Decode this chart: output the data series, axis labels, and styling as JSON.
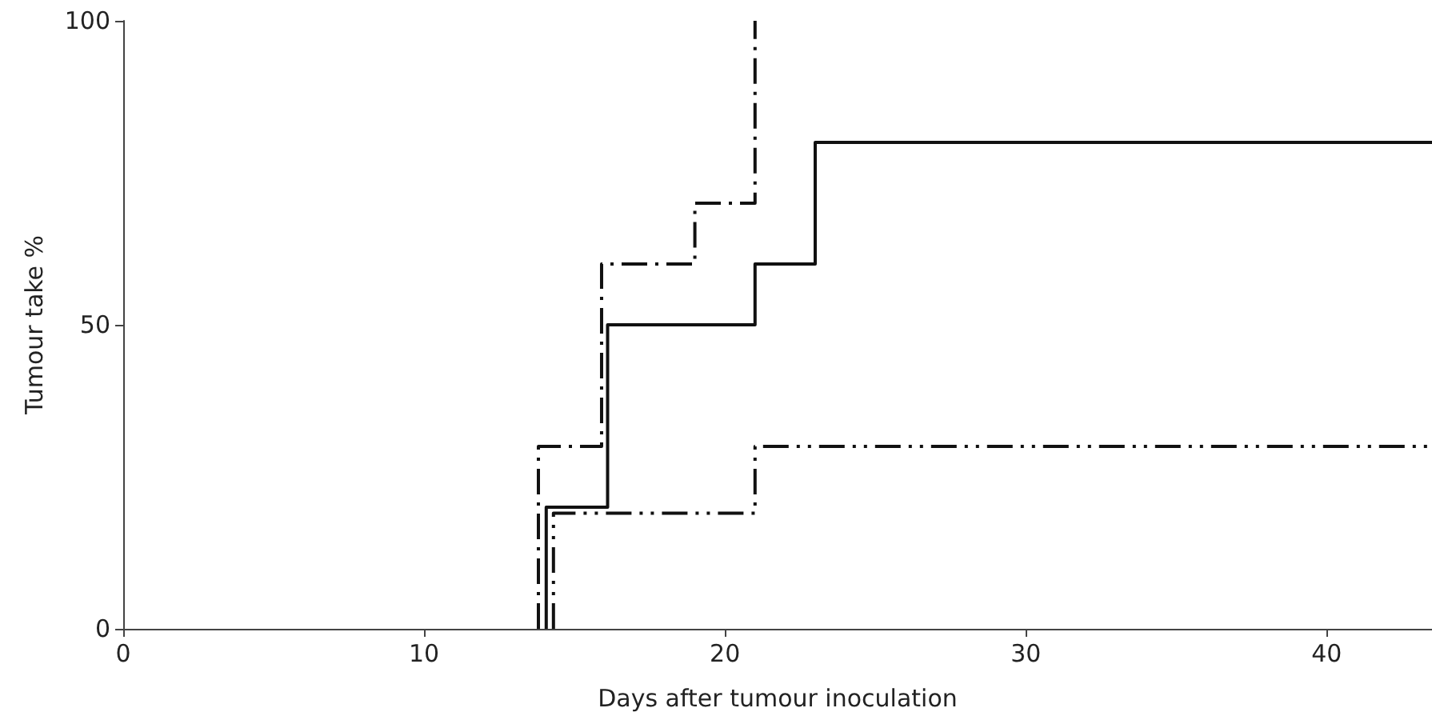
{
  "chart_data": {
    "type": "step",
    "xlabel": "Days after tumour inoculation",
    "ylabel": "Tumour take %",
    "xlim": [
      0,
      43.5
    ],
    "xticks": [
      0,
      10,
      20,
      30,
      40
    ],
    "ylim": [
      0,
      100
    ],
    "yticks": [
      0,
      50,
      100
    ],
    "grid": false,
    "marker": "none",
    "series": [
      {
        "color": "#111111",
        "line_style": "solid",
        "x": [
          14.06,
          14.06,
          16.1,
          21,
          23,
          43.5
        ],
        "values": [
          0,
          20,
          50,
          60,
          80,
          80
        ]
      },
      {
        "color": "#111111",
        "line_style": "dashed",
        "x": [
          13.8,
          13.8,
          15.9,
          19,
          21
        ],
        "values": [
          0,
          30,
          60,
          70,
          100
        ]
      },
      {
        "color": "#111111",
        "line_style": "dotted",
        "x": [
          14.3,
          14.3,
          21,
          43.5
        ],
        "values": [
          0,
          19,
          30,
          30
        ]
      }
    ]
  }
}
